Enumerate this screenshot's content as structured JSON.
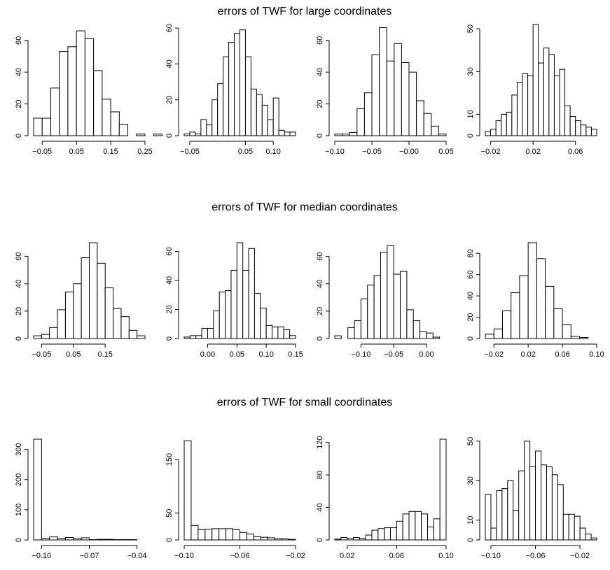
{
  "row_titles": [
    "errors of TWF for large coordinates",
    "errors of TWF for median coordinates",
    "errors of TWF for small coordinates"
  ],
  "chart_data": [
    {
      "type": "bar",
      "title": "",
      "row": 0,
      "col": 0,
      "bin_start": -0.075,
      "bin_width": 0.025,
      "values": [
        11,
        11,
        30,
        53,
        56,
        66,
        61,
        41,
        23,
        15,
        7,
        0,
        1,
        0,
        1
      ],
      "xticks": [
        -0.05,
        0.05,
        0.15,
        0.25
      ],
      "xtick_labels": [
        "−0.05",
        "0.05",
        "0.15",
        "0.25"
      ],
      "xlim": [
        -0.075,
        0.25
      ],
      "yticks": [
        0,
        20,
        40,
        60
      ],
      "ylim": [
        0,
        70
      ]
    },
    {
      "type": "bar",
      "title": "",
      "row": 0,
      "col": 1,
      "bin_start": -0.06,
      "bin_width": 0.01,
      "values": [
        1,
        2,
        1,
        9,
        6,
        20,
        29,
        44,
        52,
        57,
        59,
        44,
        26,
        23,
        17,
        9,
        21,
        3,
        2,
        2
      ],
      "xticks": [
        -0.05,
        0.05,
        0.1
      ],
      "xtick_labels": [
        "−0.05",
        "0.05",
        "0.10"
      ],
      "xlim": [
        -0.06,
        0.14
      ],
      "yticks": [
        0,
        20,
        40,
        60
      ],
      "ylim": [
        0,
        62
      ]
    },
    {
      "type": "bar",
      "title": "",
      "row": 0,
      "col": 2,
      "bin_start": -0.1,
      "bin_width": 0.01,
      "values": [
        1,
        1,
        2,
        17,
        27,
        51,
        68,
        47,
        58,
        46,
        40,
        22,
        14,
        6,
        1
      ],
      "xticks": [
        -0.1,
        -0.05,
        0.0,
        0.05
      ],
      "xtick_labels": [
        "−0.10",
        "−0.05",
        "−0.00",
        "0.05"
      ],
      "xlim": [
        -0.1,
        0.05
      ],
      "yticks": [
        0,
        20,
        40,
        60
      ],
      "ylim": [
        0,
        70
      ]
    },
    {
      "type": "bar",
      "title": "",
      "row": 0,
      "col": 3,
      "bin_start": -0.025,
      "bin_width": 0.005,
      "values": [
        2,
        3,
        7,
        10,
        11,
        19,
        25,
        29,
        28,
        52,
        34,
        41,
        38,
        28,
        31,
        14,
        9,
        7,
        5,
        4,
        3
      ],
      "xticks": [
        -0.02,
        0.02,
        0.06
      ],
      "xtick_labels": [
        "−0.02",
        "0.02",
        "0.06"
      ],
      "xlim": [
        -0.025,
        0.08
      ],
      "yticks": [
        0,
        10,
        30,
        50
      ],
      "ylim": [
        0,
        52
      ]
    },
    {
      "type": "bar",
      "title": "",
      "row": 1,
      "col": 0,
      "bin_start": -0.075,
      "bin_width": 0.025,
      "values": [
        2,
        3,
        8,
        21,
        34,
        40,
        59,
        70,
        55,
        37,
        22,
        16,
        6,
        2
      ],
      "xticks": [
        -0.05,
        0.05,
        0.15
      ],
      "xtick_labels": [
        "−0.05",
        "0.05",
        "0.15"
      ],
      "xlim": [
        -0.075,
        0.275
      ],
      "yticks": [
        0,
        20,
        40,
        60
      ],
      "ylim": [
        0,
        70
      ]
    },
    {
      "type": "bar",
      "title": "",
      "row": 1,
      "col": 1,
      "bin_start": -0.04,
      "bin_width": 0.01,
      "values": [
        1,
        2,
        2,
        7,
        7,
        19,
        32,
        33,
        47,
        66,
        47,
        62,
        31,
        21,
        9,
        8,
        8,
        6,
        2
      ],
      "xticks": [
        0.0,
        0.05,
        0.1,
        0.15
      ],
      "xtick_labels": [
        "0.00",
        "0.05",
        "0.10",
        "0.15"
      ],
      "xlim": [
        -0.04,
        0.15
      ],
      "yticks": [
        0,
        20,
        40,
        60
      ],
      "ylim": [
        0,
        66
      ]
    },
    {
      "type": "bar",
      "title": "",
      "row": 1,
      "col": 2,
      "bin_start": -0.14,
      "bin_width": 0.01,
      "values": [
        2,
        0,
        8,
        13,
        29,
        39,
        46,
        63,
        68,
        47,
        49,
        21,
        13,
        5,
        4,
        1
      ],
      "xticks": [
        -0.1,
        -0.05,
        0.0
      ],
      "xtick_labels": [
        "−0.10",
        "−0.05",
        "0.00"
      ],
      "xlim": [
        -0.14,
        0.03
      ],
      "yticks": [
        0,
        20,
        40,
        60
      ],
      "ylim": [
        0,
        70
      ]
    },
    {
      "type": "bar",
      "title": "",
      "row": 1,
      "col": 3,
      "bin_start": -0.03,
      "bin_width": 0.01,
      "values": [
        4,
        9,
        26,
        43,
        59,
        90,
        75,
        49,
        28,
        13,
        2,
        1
      ],
      "xticks": [
        -0.02,
        0.02,
        0.06,
        0.1
      ],
      "xtick_labels": [
        "−0.02",
        "0.02",
        "0.06",
        "0.10"
      ],
      "xlim": [
        -0.03,
        0.1
      ],
      "yticks": [
        0,
        20,
        40,
        60,
        80
      ],
      "ylim": [
        0,
        90
      ]
    },
    {
      "type": "bar",
      "title": "",
      "row": 2,
      "col": 0,
      "bin_start": -0.105,
      "bin_width": 0.005,
      "values": [
        334,
        5,
        10,
        5,
        8,
        4,
        7,
        1,
        2,
        2,
        1,
        1,
        1,
        0
      ],
      "xticks": [
        -0.1,
        -0.07,
        -0.04
      ],
      "xtick_labels": [
        "−0.10",
        "−0.07",
        "−0.04"
      ],
      "xlim": [
        -0.105,
        -0.035
      ],
      "yticks": [
        0,
        100,
        200,
        300
      ],
      "ylim": [
        0,
        334
      ]
    },
    {
      "type": "bar",
      "title": "",
      "row": 2,
      "col": 1,
      "bin_start": -0.1,
      "bin_width": 0.005,
      "values": [
        185,
        27,
        19,
        20,
        21,
        21,
        21,
        19,
        14,
        11,
        6,
        5,
        4,
        2,
        2,
        1
      ],
      "xticks": [
        -0.1,
        -0.06,
        -0.02
      ],
      "xtick_labels": [
        "−0.10",
        "−0.06",
        "−0.02"
      ],
      "xlim": [
        -0.1,
        -0.02
      ],
      "yticks": [
        0,
        50,
        150
      ],
      "ylim": [
        0,
        188
      ]
    },
    {
      "type": "bar",
      "title": "",
      "row": 2,
      "col": 2,
      "bin_start": 0.01,
      "bin_width": 0.005,
      "values": [
        1,
        3,
        2,
        3,
        2,
        6,
        12,
        14,
        15,
        15,
        23,
        32,
        35,
        35,
        32,
        16,
        26,
        124
      ],
      "xticks": [
        0.02,
        0.06,
        0.1
      ],
      "xtick_labels": [
        "0.02",
        "0.06",
        "0.10"
      ],
      "xlim": [
        0.01,
        0.1
      ],
      "yticks": [
        0,
        40,
        80,
        120
      ],
      "ylim": [
        0,
        124
      ]
    },
    {
      "type": "bar",
      "title": "",
      "row": 2,
      "col": 3,
      "bin_start": -0.105,
      "bin_width": 0.005,
      "values": [
        23,
        6,
        25,
        26,
        30,
        15,
        35,
        50,
        37,
        45,
        38,
        37,
        33,
        28,
        13,
        13,
        12,
        6,
        3,
        1
      ],
      "xticks": [
        -0.1,
        -0.06,
        -0.02
      ],
      "xtick_labels": [
        "−0.10",
        "−0.06",
        "−0.02"
      ],
      "xlim": [
        -0.105,
        -0.005
      ],
      "yticks": [
        0,
        10,
        30,
        50
      ],
      "ylim": [
        0,
        51
      ]
    }
  ]
}
